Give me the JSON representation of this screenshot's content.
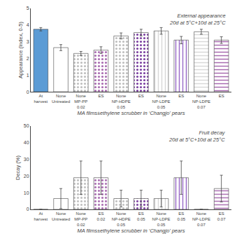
{
  "chart_data": [
    {
      "type": "bar",
      "categories": [
        "At\nharvest",
        "None\nUntreated",
        "None\nMP-PP 0.02",
        "ES",
        "None\nNP-HDPE 0.05",
        "ES",
        "None\nNP-LDPE 0.05",
        "ES",
        "None\nNP-LDPE 0.07",
        "ES"
      ],
      "values": [
        3.75,
        2.65,
        2.3,
        2.5,
        3.35,
        3.55,
        3.65,
        3.1,
        3.6,
        3.1
      ],
      "errors": [
        0.1,
        0.18,
        0.12,
        0.2,
        0.18,
        0.2,
        0.2,
        0.22,
        0.15,
        0.2
      ],
      "colors": [
        "#5B9BD5",
        "#FFFFFF",
        "#BEBEBE",
        "#A86BB0",
        "#BEBEBE",
        "#7B3FA0",
        "#D8D8D8",
        "#9B6EC8",
        "#D8D8D8",
        "#A86BB0"
      ],
      "ylabel": "Appearance (Index, 0-5)",
      "xlabel": "MA films±ethylene scrubber in ‘Changjo’ pears",
      "annotation": "External appearance\n20d at 5°C+10d at 25°C",
      "ylim": [
        0,
        5
      ],
      "yticks": [
        0,
        1,
        2,
        3,
        4,
        5
      ],
      "grid": false
    },
    {
      "type": "bar",
      "categories": [
        "At\nharvest",
        "None\nUntreated",
        "None\nMP-PP 0.02",
        "ES\n0.02",
        "None\nNP-HDPE 0.05",
        "ES\n0.05",
        "None\nNP-LDPE 0.05",
        "ES\n0.05",
        "None\nNP-LDPE 0.07",
        "ES\n0.07"
      ],
      "values": [
        0,
        6.5,
        19,
        19,
        6.5,
        6.5,
        6.5,
        19,
        0,
        12.5
      ],
      "errors": [
        0,
        6,
        10,
        10,
        5,
        5,
        5,
        10,
        0,
        8
      ],
      "colors": [
        "#5B9BD5",
        "#FFFFFF",
        "#BEBEBE",
        "#A86BB0",
        "#BEBEBE",
        "#7B3FA0",
        "#D8D8D8",
        "#9B6EC8",
        "#D8D8D8",
        "#A86BB0"
      ],
      "ylabel": "Decay (%)",
      "xlabel": "MA films±ethylene scrubber in ‘Changjo’ pears",
      "annotation": "Fruit decay\n20d at 5°C+10d at 25°C",
      "ylim": [
        0,
        50
      ],
      "yticks": [
        0,
        10,
        20,
        30,
        40,
        50
      ],
      "grid": false
    }
  ]
}
